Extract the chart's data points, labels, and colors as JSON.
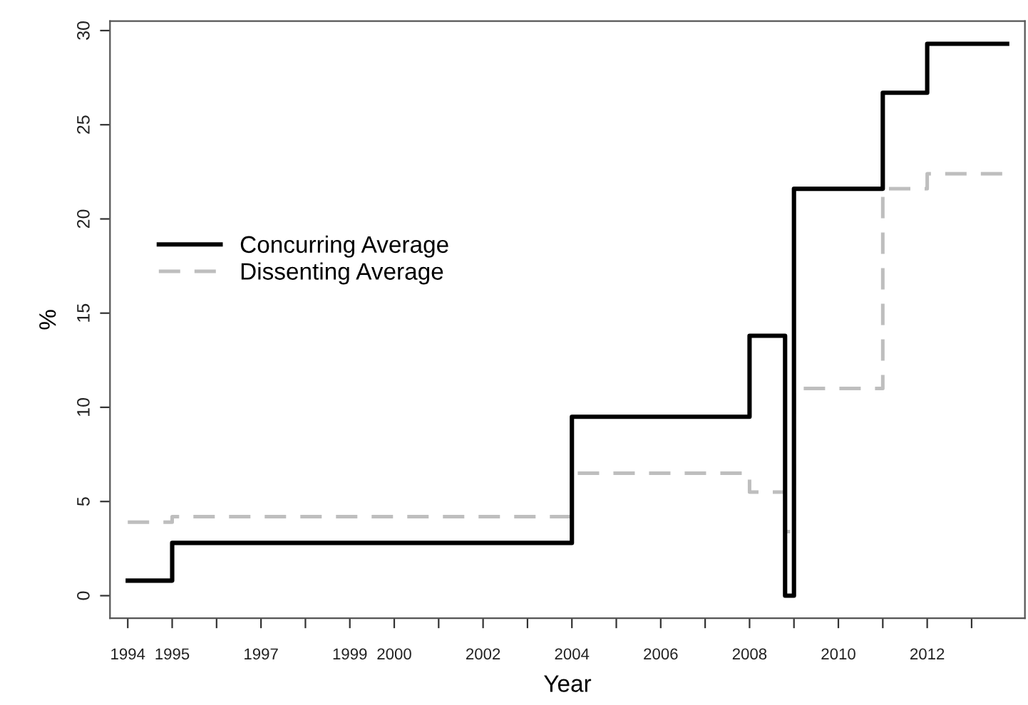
{
  "chart_data": {
    "type": "step",
    "xlabel": "Year",
    "ylabel": "%",
    "xlim": [
      1993.6,
      2014.2
    ],
    "ylim": [
      -1.2,
      30.5
    ],
    "xticks": [
      1994,
      1995,
      {
        "value": 1996,
        "label": null
      },
      1997,
      {
        "value": 1998,
        "label": null
      },
      1999,
      2000,
      {
        "value": 2001,
        "label": null
      },
      2002,
      {
        "value": 2003,
        "label": null
      },
      2004,
      {
        "value": 2005,
        "label": null
      },
      2006,
      {
        "value": 2007,
        "label": null
      },
      2008,
      {
        "value": 2009,
        "label": null
      },
      2010,
      {
        "value": 2011,
        "label": null
      },
      2012,
      {
        "value": 2013,
        "label": null
      }
    ],
    "yticks": [
      0,
      5,
      10,
      15,
      20,
      25,
      30
    ],
    "grid": false,
    "legend": "left",
    "series": [
      {
        "name": "Concurring Average",
        "color": "#000000",
        "line_style": "solid",
        "x": [
          1994,
          1995,
          2004,
          2008,
          2008.8,
          2009,
          2011,
          2012,
          2013.8
        ],
        "values": [
          0.8,
          2.8,
          9.5,
          13.8,
          0,
          21.6,
          26.7,
          29.3,
          29.3
        ]
      },
      {
        "name": "Dissenting Average",
        "color": "#bebebe",
        "line_style": "dashed",
        "x": [
          1994,
          1995,
          2004,
          2008,
          2008.8,
          2009,
          2011,
          2012,
          2013.7
        ],
        "values": [
          3.9,
          4.2,
          6.5,
          5.5,
          3.4,
          11.0,
          21.6,
          22.4,
          22.4
        ]
      }
    ]
  }
}
